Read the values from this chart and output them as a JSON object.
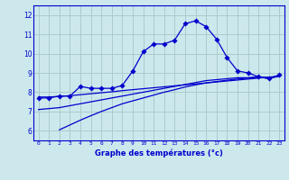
{
  "xlabel": "Graphe des températures (°c)",
  "bg_color": "#cce8ed",
  "grid_color": "#aacccc",
  "line_color": "#0000cc",
  "ylim": [
    5.5,
    12.5
  ],
  "xlim": [
    -0.5,
    23.5
  ],
  "yticks": [
    6,
    7,
    8,
    9,
    10,
    11,
    12
  ],
  "xticks": [
    0,
    1,
    2,
    3,
    4,
    5,
    6,
    7,
    8,
    9,
    10,
    11,
    12,
    13,
    14,
    15,
    16,
    17,
    18,
    19,
    20,
    21,
    22,
    23
  ],
  "series1_x": [
    0,
    1,
    2,
    3,
    4,
    5,
    6,
    7,
    8,
    9,
    10,
    11,
    12,
    13,
    14,
    15,
    16,
    17,
    18,
    19,
    20,
    21,
    22,
    23
  ],
  "series1_y": [
    7.7,
    7.7,
    7.8,
    7.8,
    8.3,
    8.2,
    8.2,
    8.2,
    8.35,
    9.1,
    10.1,
    10.5,
    10.5,
    10.7,
    11.55,
    11.7,
    11.4,
    10.75,
    9.8,
    9.1,
    9.0,
    8.8,
    8.7,
    8.9
  ],
  "series2_x": [
    0,
    1,
    2,
    3,
    4,
    5,
    6,
    7,
    8,
    9,
    10,
    11,
    12,
    13,
    14,
    15,
    16,
    17,
    18,
    19,
    20,
    21,
    22,
    23
  ],
  "series2_y": [
    7.75,
    7.75,
    7.78,
    7.82,
    7.87,
    7.92,
    7.97,
    8.02,
    8.08,
    8.13,
    8.18,
    8.23,
    8.28,
    8.33,
    8.38,
    8.43,
    8.48,
    8.53,
    8.58,
    8.63,
    8.68,
    8.73,
    8.78,
    8.83
  ],
  "series3_x": [
    0,
    1,
    2,
    3,
    4,
    5,
    6,
    7,
    8,
    9,
    10,
    11,
    12,
    13,
    14,
    15,
    16,
    17,
    18,
    19,
    20,
    21,
    22,
    23
  ],
  "series3_y": [
    7.1,
    7.15,
    7.2,
    7.3,
    7.4,
    7.5,
    7.6,
    7.7,
    7.8,
    7.9,
    8.0,
    8.1,
    8.2,
    8.3,
    8.4,
    8.5,
    8.6,
    8.65,
    8.7,
    8.75,
    8.75,
    8.8,
    8.75,
    8.85
  ],
  "series4_x": [
    2,
    3,
    4,
    5,
    6,
    7,
    8,
    9,
    10,
    11,
    12,
    13,
    14,
    15,
    16,
    17,
    18,
    19,
    20,
    21,
    22,
    23
  ],
  "series4_y": [
    6.05,
    6.3,
    6.55,
    6.78,
    7.0,
    7.2,
    7.4,
    7.55,
    7.7,
    7.85,
    8.0,
    8.13,
    8.27,
    8.38,
    8.48,
    8.55,
    8.62,
    8.68,
    8.73,
    8.78,
    8.72,
    8.82
  ]
}
